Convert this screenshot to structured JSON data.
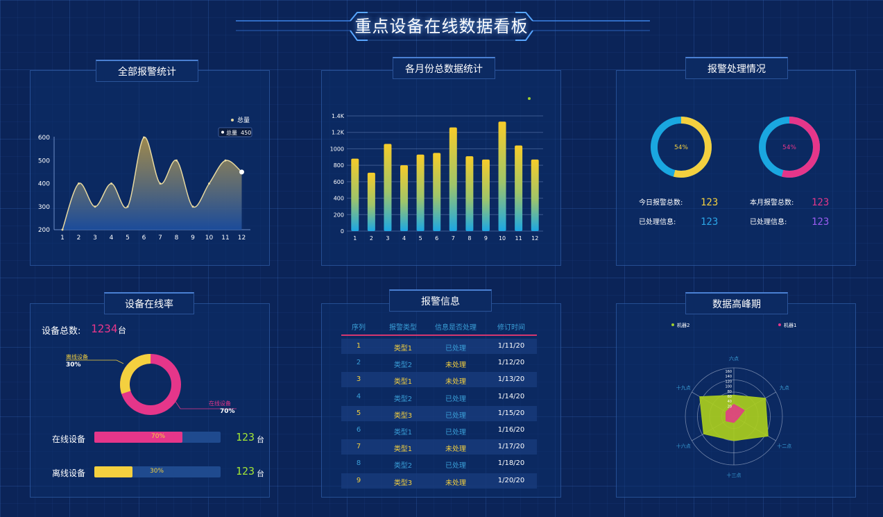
{
  "title": "重点设备在线数据看板",
  "colors": {
    "background": "#0b2458",
    "yellow": "#f4d03f",
    "pink": "#e5368a",
    "cyan": "#1aa7e0",
    "green": "#9fcf2f"
  },
  "panels": {
    "alarm_stats": {
      "title": "全部报警统计",
      "legend": "总量",
      "tooltip": {
        "label": "总量",
        "value": "450"
      },
      "chart_data": {
        "type": "area",
        "x": [
          "1",
          "2",
          "3",
          "4",
          "5",
          "6",
          "7",
          "8",
          "9",
          "10",
          "11",
          "12"
        ],
        "series": [
          {
            "name": "总量",
            "values": [
              200,
              400,
              300,
              400,
              300,
              600,
              400,
              500,
              300,
              400,
              500,
              450
            ]
          }
        ],
        "ylim": [
          200,
          600
        ],
        "yticks": [
          "200",
          "300",
          "400",
          "500",
          "600"
        ]
      }
    },
    "monthly": {
      "title": "各月份总数据统计",
      "chart_data": {
        "type": "bar",
        "categories": [
          "1",
          "2",
          "3",
          "4",
          "5",
          "6",
          "7",
          "8",
          "9",
          "10",
          "11",
          "12"
        ],
        "values": [
          880,
          710,
          1060,
          800,
          930,
          950,
          1260,
          910,
          870,
          1330,
          1040,
          870
        ],
        "ylim": [
          0,
          1400
        ],
        "yticks": [
          "0",
          "200",
          "400",
          "600",
          "800",
          "1000",
          "1.2K",
          "1.4K"
        ]
      }
    },
    "alarm_handle": {
      "title": "报警处理情况",
      "donut_left": {
        "percent": 54,
        "label": "54%"
      },
      "donut_right": {
        "percent": 54,
        "label": "54%"
      },
      "stats": [
        {
          "label": "今日报警总数:",
          "value": "123"
        },
        {
          "label": "已处理信息:",
          "value": "123"
        },
        {
          "label": "本月报警总数:",
          "value": "123"
        },
        {
          "label": "已处理信息:",
          "value": "123"
        }
      ]
    },
    "online_rate": {
      "title": "设备在线率",
      "total_label": "设备总数:",
      "total_value": "1234",
      "total_unit": "台",
      "donut": {
        "online_percent": 70,
        "offline_label": "离线设备",
        "offline_percent": "30%",
        "online_label": "在线设备",
        "online_percent_text": "70%"
      },
      "bars": [
        {
          "label": "在线设备",
          "fill": 0.7,
          "percent": "70%",
          "value": "123",
          "unit": "台"
        },
        {
          "label": "离线设备",
          "fill": 0.3,
          "percent": "30%",
          "value": "123",
          "unit": "台"
        }
      ]
    },
    "alarm_info": {
      "title": "报警信息",
      "headers": [
        "序列",
        "报警类型",
        "信息是否处理",
        "修订时间"
      ],
      "rows": [
        [
          "1",
          "类型1",
          "已处理",
          "1/11/20"
        ],
        [
          "2",
          "类型2",
          "未处理",
          "1/12/20"
        ],
        [
          "3",
          "类型1",
          "未处理",
          "1/13/20"
        ],
        [
          "4",
          "类型2",
          "已处理",
          "1/14/20"
        ],
        [
          "5",
          "类型3",
          "已处理",
          "1/15/20"
        ],
        [
          "6",
          "类型1",
          "已处理",
          "1/16/20"
        ],
        [
          "7",
          "类型1",
          "未处理",
          "1/17/20"
        ],
        [
          "8",
          "类型2",
          "已处理",
          "1/18/20"
        ],
        [
          "9",
          "类型3",
          "未处理",
          "1/20/20"
        ]
      ]
    },
    "peak": {
      "title": "数据高峰期",
      "legend": [
        "机器2",
        "机器1"
      ],
      "chart_data": {
        "type": "radar",
        "indicators": [
          "六点",
          "九点",
          "十二点",
          "十三点",
          "十六点",
          "十九点"
        ],
        "scale_labels": [
          "160",
          "140",
          "120",
          "100",
          "80",
          "60",
          "40",
          "20"
        ],
        "max": 160,
        "series": [
          {
            "name": "机器2",
            "values": [
              70,
              120,
              130,
              80,
              115,
              130
            ]
          },
          {
            "name": "机器1",
            "values": [
              40,
              40,
              15,
              20,
              30,
              30
            ]
          }
        ]
      }
    }
  }
}
